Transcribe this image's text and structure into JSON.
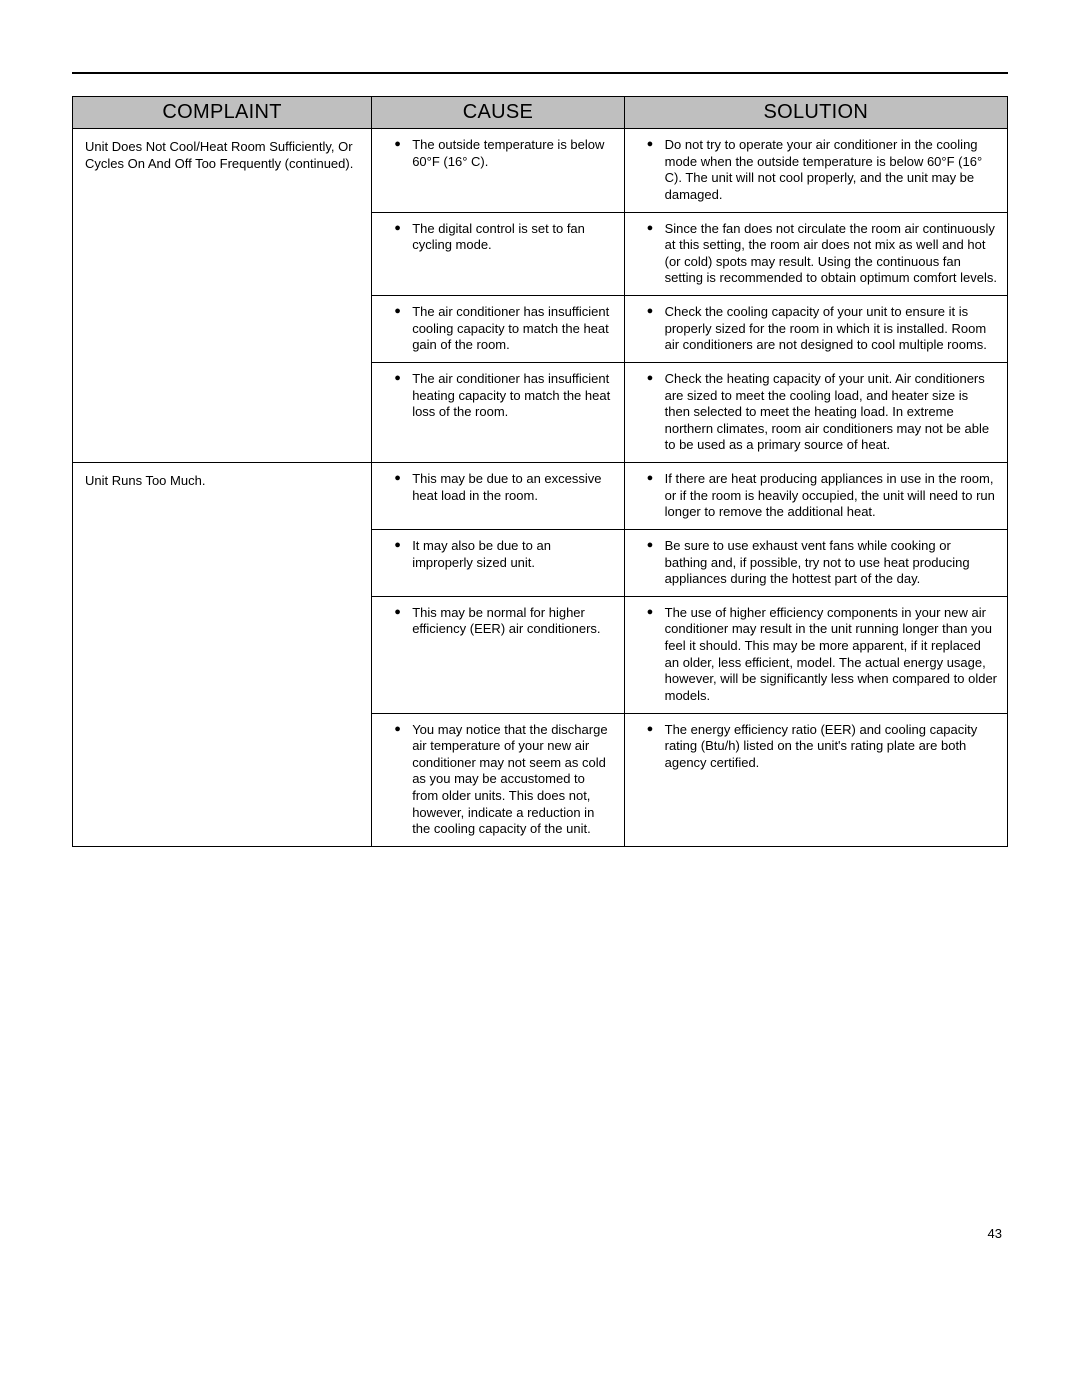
{
  "page_number": "43",
  "headers": {
    "complaint": "COMPLAINT",
    "cause": "CAUSE",
    "solution": "SOLUTION"
  },
  "sections": [
    {
      "complaint": "Unit Does Not Cool/Heat Room Sufficiently, Or Cycles On And Off Too Frequently (continued).",
      "rows": [
        {
          "cause": "The outside temperature is below 60°F (16° C).",
          "solution": "Do not try to operate your air conditioner in the cooling mode when the outside temperature is below 60°F (16° C).  The unit will not cool properly, and the unit may be damaged."
        },
        {
          "cause": "The digital control is set to fan cycling mode.",
          "solution": "Since the fan does not circulate the room air continuously at this setting, the room air does not mix as well and hot (or cold) spots may result.  Using the continuous fan setting is recommended to obtain optimum comfort levels."
        },
        {
          "cause": "The air conditioner has insufficient cooling capacity to match the heat gain of the room.",
          "solution": "Check the cooling capacity of your unit to ensure it is properly sized for the room in which it is installed.  Room air conditioners are not designed to cool multiple rooms."
        },
        {
          "cause": "The air conditioner has insufficient heating capacity to match the heat loss of the room.",
          "solution": "Check the heating capacity of your unit.  Air conditioners are sized to meet the cooling load, and heater size is then selected to meet the heating load.  In extreme northern climates, room air conditioners may not be able to be used as a primary source of heat."
        }
      ]
    },
    {
      "complaint": "Unit Runs Too Much.",
      "rows": [
        {
          "cause": "This may be due to an excessive heat load in the room.",
          "solution": "If there are heat producing appliances in use in the room, or if the room is heavily occupied, the unit will need to run longer to remove the additional heat."
        },
        {
          "cause": "It may also be due to an improperly sized unit.",
          "solution": "Be sure to use exhaust vent fans while cooking or bathing and, if possible, try not to use heat producing appliances during the hottest part of the day."
        },
        {
          "cause": "This may be normal for higher efficiency (EER) air conditioners.",
          "solution": "The use of higher efficiency components in your new air conditioner may result in the unit running longer than you feel it should.  This may be more apparent, if it replaced an older, less efficient, model.  The actual energy usage, however, will be significantly less when compared to older models."
        },
        {
          "cause": "You may notice that the discharge air temperature of your new air conditioner may not seem as cold as you may be accustomed to from older units.  This does not, however, indicate a reduction in the cooling capacity of the unit.",
          "solution": "The energy efficiency ratio (EER) and cooling capacity rating (Btu/h) listed on the unit's rating plate are both agency certified."
        }
      ]
    }
  ]
}
